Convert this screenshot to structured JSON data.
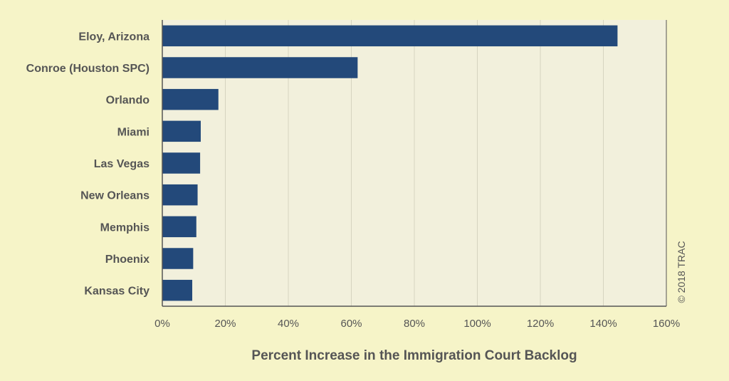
{
  "chart_data": {
    "type": "bar",
    "orientation": "horizontal",
    "title": "",
    "xlabel": "Percent Increase in the Immigration Court Backlog",
    "ylabel": "",
    "categories": [
      "Eloy, Arizona",
      "Conroe (Houston SPC)",
      "Orlando",
      "Miami",
      "Las Vegas",
      "New Orleans",
      "Memphis",
      "Phoenix",
      "Kansas City"
    ],
    "values": [
      144.5,
      62,
      17.8,
      12.2,
      12,
      11.2,
      10.8,
      9.8,
      9.5
    ],
    "xlim": [
      0,
      160
    ],
    "x_ticks": [
      "0%",
      "20%",
      "40%",
      "60%",
      "80%",
      "100%",
      "120%",
      "140%",
      "160%"
    ],
    "grid": "vertical",
    "legend": "none",
    "bar_color": "#23497a",
    "plot_background": "#f2f0dc",
    "credit": "© 2018 TRAC"
  }
}
